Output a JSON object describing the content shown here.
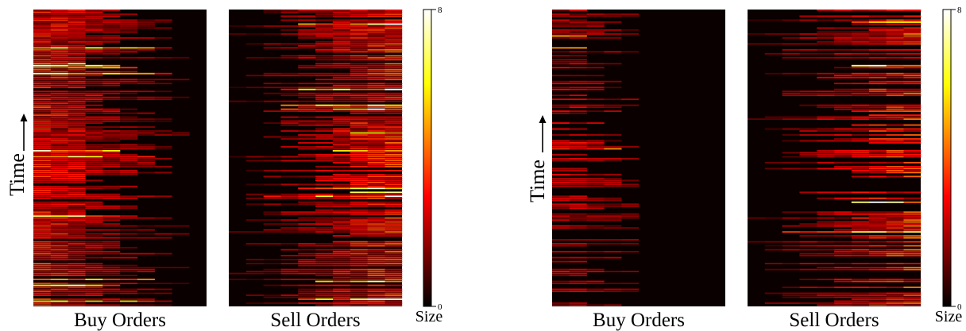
{
  "chart_data": [
    {
      "type": "heatmap",
      "ylabel": "Time",
      "colorbar": {
        "label": "Size",
        "min": 0,
        "max": 8,
        "ticks": [
          "0",
          "8"
        ],
        "colormap": "hot"
      },
      "panels": [
        {
          "title": "Buy Orders",
          "extent": 0.88,
          "density": 0.92,
          "mean_size": 2.6
        },
        {
          "title": "Sell Orders",
          "extent": 1.0,
          "density": 0.88,
          "mean_size": 3.1
        }
      ]
    },
    {
      "type": "heatmap",
      "ylabel": "Time",
      "colorbar": {
        "label": "Size",
        "min": 0,
        "max": 8,
        "ticks": [
          "0",
          "8"
        ],
        "colormap": "hot"
      },
      "panels": [
        {
          "title": "Buy Orders",
          "extent": 0.55,
          "density": 0.5,
          "mean_size": 2.0
        },
        {
          "title": "Sell Orders",
          "extent": 1.0,
          "density": 0.55,
          "mean_size": 3.2
        }
      ]
    }
  ]
}
